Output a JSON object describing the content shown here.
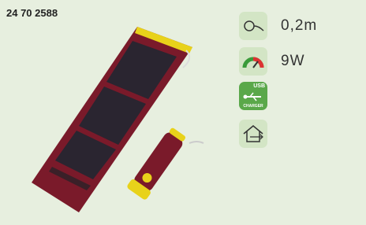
{
  "product": {
    "code": "24 70 2588",
    "specs": [
      {
        "value": "0,2m"
      },
      {
        "value": "9W"
      }
    ],
    "usb_icon": {
      "top": "USB",
      "bottom": "CHARGER"
    }
  }
}
